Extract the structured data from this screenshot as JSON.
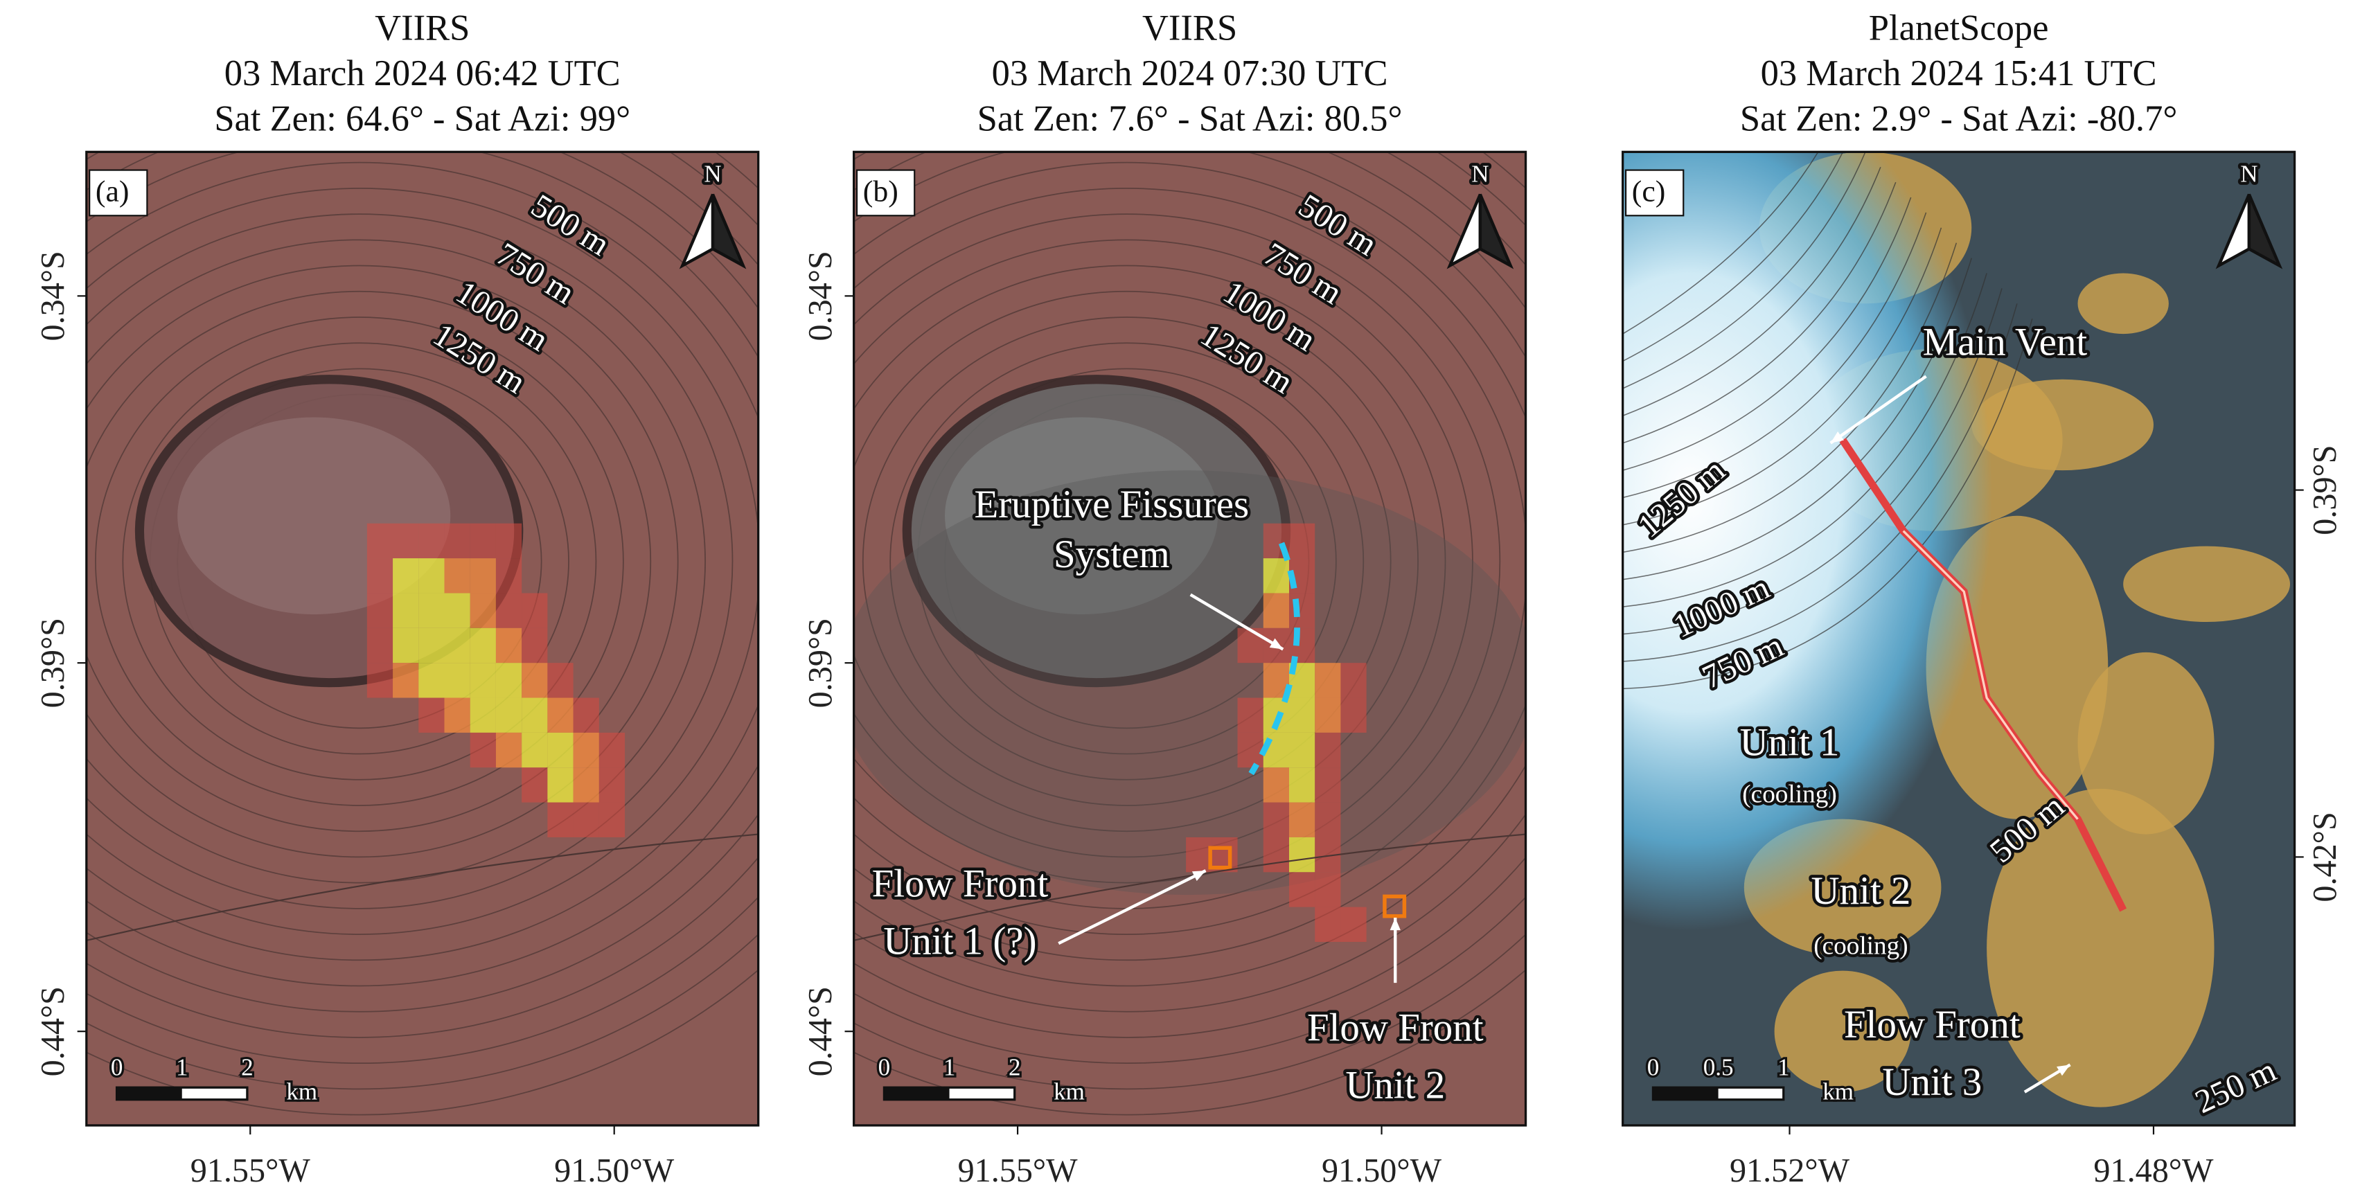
{
  "panels": [
    {
      "title": [
        "VIIRS",
        "03 March 2024 06:42 UTC",
        "Sat Zen: 64.6° - Sat Azi: 99°"
      ],
      "label": "(a)",
      "north": "N",
      "x_ticks": [
        "91.55°W",
        "91.50°W"
      ],
      "y_ticks": [
        "0.34°S",
        "0.39°S",
        "0.44°S"
      ],
      "scale_bar": [
        "0",
        "1",
        "2",
        "km"
      ],
      "contour_labels": [
        "500 m",
        "750 m",
        "1000 m",
        "1250 m"
      ],
      "annotations": []
    },
    {
      "title": [
        "VIIRS",
        "03 March 2024 07:30 UTC",
        "Sat Zen: 7.6° - Sat Azi: 80.5°"
      ],
      "label": "(b)",
      "north": "N",
      "x_ticks": [
        "91.55°W",
        "91.50°W"
      ],
      "y_ticks": [
        "0.34°S",
        "0.39°S",
        "0.44°S"
      ],
      "scale_bar": [
        "0",
        "1",
        "2",
        "km"
      ],
      "contour_labels": [
        "500 m",
        "750 m",
        "1000 m",
        "1250 m"
      ],
      "annotations": [
        {
          "lines": [
            "Eruptive Fissures",
            "System"
          ]
        },
        {
          "lines": [
            "Flow Front",
            "Unit 1 (?)"
          ]
        },
        {
          "lines": [
            "Flow Front",
            "Unit 2"
          ]
        }
      ]
    },
    {
      "title": [
        "PlanetScope",
        "03 March 2024 15:41 UTC",
        "Sat Zen: 2.9° - Sat Azi: -80.7°"
      ],
      "label": "(c)",
      "north": "N",
      "x_ticks": [
        "91.52°W",
        "91.48°W"
      ],
      "y_ticks": [
        "0.39°S",
        "0.42°S"
      ],
      "scale_bar": [
        "0",
        "0.5",
        "1",
        "km"
      ],
      "contour_labels": [
        "1250 m",
        "1000 m",
        "750 m",
        "500 m",
        "250 m"
      ],
      "annotations": [
        {
          "lines": [
            "Main Vent"
          ]
        },
        {
          "lines": [
            "Unit 1",
            "(cooling)"
          ]
        },
        {
          "lines": [
            "Unit 2",
            "(cooling)"
          ]
        },
        {
          "lines": [
            "Flow Front",
            "Unit 3"
          ]
        }
      ]
    }
  ]
}
